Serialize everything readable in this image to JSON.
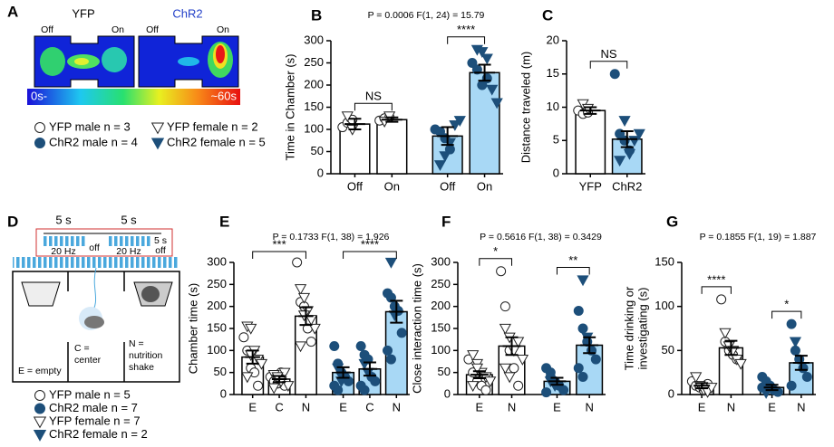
{
  "panel_a": {
    "panel": "A",
    "groups": [
      "YFP",
      "ChR2"
    ],
    "off": "Off",
    "on": "On",
    "scale_min": "0s-",
    "scale_max": "~60s"
  },
  "legend_top": [
    {
      "label": "YFP male n = 3",
      "marker": "circle-open"
    },
    {
      "label": "ChR2 male n = 4",
      "marker": "circle-filled"
    },
    {
      "label": "YFP female n = 2",
      "marker": "triangle-open"
    },
    {
      "label": "ChR2 female n = 5",
      "marker": "triangle-filled"
    }
  ],
  "panel_d": {
    "panel": "D",
    "durations": [
      "5 s",
      "5 s",
      "5 s"
    ],
    "freqs": [
      "20 Hz",
      "20 Hz"
    ],
    "offs": [
      "off",
      "off"
    ],
    "zones": [
      [
        "E = empty"
      ],
      [
        "C =",
        "center"
      ],
      [
        "N =",
        "nutrition",
        "shake"
      ]
    ]
  },
  "legend_bottom": [
    {
      "label": "YFP male n = 5",
      "marker": "circle-open"
    },
    {
      "label": "ChR2 male n = 7",
      "marker": "circle-filled"
    },
    {
      "label": "YFP female n = 7",
      "marker": "triangle-open"
    },
    {
      "label": "ChR2 female n = 2",
      "marker": "triangle-filled"
    }
  ],
  "chart_data": [
    {
      "type": "bar",
      "panel": "B",
      "stats": "P = 0.0006  F(1, 24) = 15.79",
      "ylabel": "Time in Chamber (s)",
      "categories": [
        "Off",
        "On",
        "Off",
        "On"
      ],
      "bar_colors": [
        "#ffffff",
        "#ffffff",
        "#a8d8f5",
        "#a8d8f5"
      ],
      "values": [
        112,
        122,
        85,
        228
      ],
      "errors": [
        12,
        5,
        20,
        18
      ],
      "points": [
        {
          "marker": "circle-open",
          "values": [
            [
              105,
              115,
              122
            ],
            [
              120,
              125,
              128
            ],
            null,
            null
          ]
        },
        {
          "marker": "triangle-open",
          "values": [
            [
              130,
              100
            ],
            [
              118,
              130
            ],
            null,
            null
          ]
        },
        {
          "marker": "circle-filled",
          "values": [
            null,
            null,
            [
              100,
              95,
              80,
              55
            ],
            [
              250,
              235,
              200,
              215
            ]
          ]
        },
        {
          "marker": "triangle-filled",
          "values": [
            null,
            null,
            [
              20,
              40,
              70,
              110,
              120
            ],
            [
              280,
              275,
              260,
              190,
              160
            ]
          ]
        }
      ],
      "annotations": [
        "NS",
        "****"
      ],
      "ylim": [
        0,
        300
      ],
      "yticks": [
        0,
        50,
        100,
        150,
        200,
        250,
        300
      ]
    },
    {
      "type": "bar",
      "panel": "C",
      "ylabel": "Distance traveled (m)",
      "categories": [
        "YFP",
        "ChR2"
      ],
      "bar_colors": [
        "#ffffff",
        "#a8d8f5"
      ],
      "values": [
        9.5,
        5.2
      ],
      "errors": [
        0.5,
        1.2
      ],
      "points": [
        {
          "marker": "circle-open",
          "values": [
            [
              9.5,
              9,
              9.2
            ],
            null
          ]
        },
        {
          "marker": "triangle-open",
          "values": [
            [
              10.5,
              9.8
            ],
            null
          ]
        },
        {
          "marker": "circle-filled",
          "values": [
            null,
            [
              15,
              6,
              5,
              3.5
            ]
          ]
        },
        {
          "marker": "triangle-filled",
          "values": [
            null,
            [
              2,
              8,
              3,
              5,
              6
            ]
          ]
        }
      ],
      "annotations": [
        "NS"
      ],
      "ylim": [
        0,
        20
      ],
      "yticks": [
        0,
        5,
        10,
        15,
        20
      ]
    },
    {
      "type": "bar",
      "panel": "E",
      "stats": "P = 0.1733  F(1, 38) = 1.926",
      "ylabel": "Chamber time (s)",
      "categories": [
        "E",
        "C",
        "N",
        "E",
        "C",
        "N"
      ],
      "bar_colors": [
        "#ffffff",
        "#ffffff",
        "#ffffff",
        "#a8d8f5",
        "#a8d8f5",
        "#a8d8f5"
      ],
      "values": [
        85,
        35,
        178,
        50,
        58,
        188
      ],
      "errors": [
        15,
        7,
        20,
        12,
        15,
        25
      ],
      "points": [
        {
          "marker": "circle-open",
          "values": [
            [
              130,
              100,
              60,
              50,
              20
            ],
            [
              40,
              30,
              25,
              50,
              20
            ],
            [
              300,
              210,
              200,
              150,
              120
            ],
            null,
            null,
            null
          ]
        },
        {
          "marker": "triangle-open",
          "values": [
            [
              155,
              150,
              100,
              80,
              70,
              40,
              90
            ],
            [
              45,
              35,
              30,
              50,
              20,
              15,
              40
            ],
            [
              240,
              220,
              190,
              170,
              150,
              110,
              180
            ],
            null,
            null,
            null
          ]
        },
        {
          "marker": "circle-filled",
          "values": [
            null,
            null,
            null,
            [
              110,
              70,
              50,
              40,
              30,
              20,
              10
            ],
            [
              110,
              90,
              80,
              40,
              30,
              20,
              10
            ],
            [
              230,
              220,
              200,
              190,
              140,
              100,
              80
            ]
          ]
        },
        {
          "marker": "triangle-filled",
          "values": [
            null,
            null,
            null,
            [
              60,
              30
            ],
            [
              70,
              50
            ],
            [
              300,
              180
            ]
          ]
        }
      ],
      "annotations": [
        "***",
        "****"
      ],
      "ylim": [
        0,
        300
      ],
      "yticks": [
        0,
        50,
        100,
        150,
        200,
        250,
        300
      ]
    },
    {
      "type": "bar",
      "panel": "F",
      "stats": "P = 0.5616  F(1, 38) = 0.3429",
      "ylabel": "Close interaction time (s)",
      "categories": [
        "E",
        "N",
        "E",
        "N"
      ],
      "bar_colors": [
        "#ffffff",
        "#ffffff",
        "#a8d8f5",
        "#a8d8f5"
      ],
      "values": [
        45,
        110,
        30,
        112
      ],
      "errors": [
        8,
        20,
        8,
        18
      ],
      "points": [
        {
          "marker": "circle-open",
          "values": [
            [
              80,
              50,
              30,
              20,
              10
            ],
            [
              280,
              200,
              100,
              60,
              20
            ],
            null,
            null
          ]
        },
        {
          "marker": "triangle-open",
          "values": [
            [
              90,
              70,
              50,
              40,
              30,
              20,
              60
            ],
            [
              150,
              130,
              100,
              120,
              80,
              60,
              40
            ],
            null,
            null
          ]
        },
        {
          "marker": "circle-filled",
          "values": [
            null,
            null,
            [
              60,
              50,
              30,
              20,
              10,
              5,
              40
            ],
            [
              190,
              150,
              120,
              100,
              80,
              60,
              40
            ]
          ]
        },
        {
          "marker": "triangle-filled",
          "values": [
            null,
            null,
            [
              30,
              20
            ],
            [
              260,
              130
            ]
          ]
        }
      ],
      "annotations": [
        "*",
        "**"
      ],
      "ylim": [
        0,
        300
      ],
      "yticks": [
        0,
        50,
        100,
        150,
        200,
        250,
        300
      ]
    },
    {
      "type": "bar",
      "panel": "G",
      "stats": "P = 0.1855  F(1, 19) = 1.887",
      "ylabel": [
        "Time drinking or",
        "investigating (s)"
      ],
      "categories": [
        "E",
        "N",
        "E",
        "N"
      ],
      "bar_colors": [
        "#ffffff",
        "#ffffff",
        "#a8d8f5",
        "#a8d8f5"
      ],
      "values": [
        10,
        53,
        8,
        36
      ],
      "errors": [
        3,
        8,
        3,
        8
      ],
      "points": [
        {
          "marker": "circle-open",
          "values": [
            [
              15,
              10,
              8,
              5,
              12
            ],
            [
              108,
              60,
              50,
              45,
              40
            ],
            null,
            null
          ]
        },
        {
          "marker": "triangle-open",
          "values": [
            [
              20,
              10,
              5,
              3,
              8
            ],
            [
              70,
              55,
              50,
              40,
              35
            ],
            null,
            null
          ]
        },
        {
          "marker": "circle-filled",
          "values": [
            null,
            null,
            [
              20,
              15,
              10,
              5,
              3,
              8
            ],
            [
              80,
              50,
              40,
              30,
              20,
              10
            ]
          ]
        },
        {
          "marker": "triangle-filled",
          "values": [
            null,
            null,
            [
              2
            ],
            [
              60
            ]
          ]
        }
      ],
      "annotations": [
        "****",
        "*"
      ],
      "ylim": [
        0,
        150
      ],
      "yticks": [
        0,
        50,
        100,
        150
      ]
    }
  ]
}
